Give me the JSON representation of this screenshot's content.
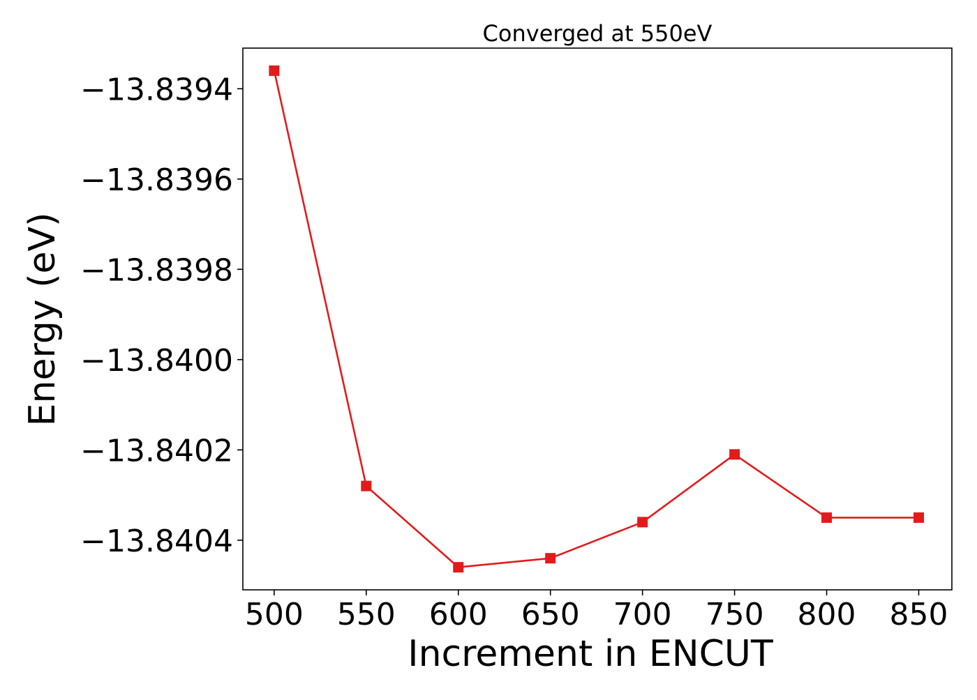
{
  "chart_data": {
    "type": "line",
    "title": "Converged at 550eV",
    "xlabel": "Increment in ENCUT",
    "ylabel": "Energy (eV)",
    "x": [
      500,
      550,
      600,
      650,
      700,
      750,
      800,
      850
    ],
    "series": [
      {
        "values": [
          -13.83936,
          -13.84028,
          -13.84046,
          -13.84044,
          -13.84036,
          -13.84021,
          -13.84035,
          -13.84035
        ],
        "color": "#e31a1c",
        "marker": "square"
      }
    ],
    "xlim": [
      483,
      868
    ],
    "ylim": [
      -13.84051,
      -13.83931
    ],
    "xticks": [
      500,
      550,
      600,
      650,
      700,
      750,
      800,
      850
    ],
    "xtick_labels": [
      "500",
      "550",
      "600",
      "650",
      "700",
      "750",
      "800",
      "850"
    ],
    "yticks": [
      -13.8394,
      -13.8396,
      -13.8398,
      -13.84,
      -13.8402,
      -13.8404
    ],
    "ytick_labels": [
      "−13.8394",
      "−13.8396",
      "−13.8398",
      "−13.8400",
      "−13.8402",
      "−13.8404"
    ],
    "grid": false,
    "legend": "none"
  }
}
